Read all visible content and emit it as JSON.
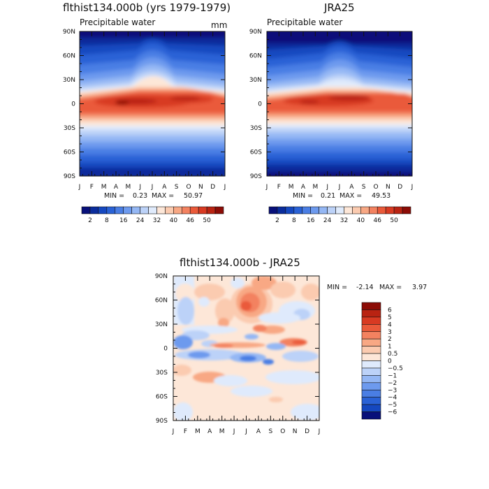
{
  "chart_data": [
    {
      "type": "heatmap",
      "title": "flthist134.000b (yrs 1979-1979)",
      "subtitle": "Precipitable water",
      "units": "mm",
      "x_ticks": [
        "J",
        "F",
        "M",
        "A",
        "M",
        "J",
        "J",
        "A",
        "S",
        "O",
        "N",
        "D",
        "J"
      ],
      "y_ticks": [
        "90N",
        "60N",
        "30N",
        "0",
        "30S",
        "60S",
        "90S"
      ],
      "lat_range": [
        -90,
        90
      ],
      "stats": {
        "min_label": "MIN =",
        "min": "0.23",
        "max_label": "MAX =",
        "max": "50.97"
      },
      "colorbar": {
        "orientation": "horizontal",
        "labels": [
          "2",
          "8",
          "16",
          "24",
          "32",
          "40",
          "46",
          "50"
        ],
        "levels": [
          2,
          4,
          6,
          8,
          12,
          16,
          20,
          24,
          28,
          32,
          36,
          40,
          44,
          46,
          48,
          50
        ],
        "colors": [
          "#08107a",
          "#0a2c9c",
          "#1548c0",
          "#2a62d6",
          "#4a7ee4",
          "#6d9aee",
          "#94b7f4",
          "#bcd2f8",
          "#e0ebfc",
          "#fde7d8",
          "#fbcbb0",
          "#f8a884",
          "#f38260",
          "#ea5a3a",
          "#d83a22",
          "#b92312",
          "#8c0c06"
        ]
      },
      "grid": false
    },
    {
      "type": "heatmap",
      "title": "JRA25",
      "subtitle": "Precipitable water",
      "x_ticks": [
        "J",
        "F",
        "M",
        "A",
        "M",
        "J",
        "J",
        "A",
        "S",
        "O",
        "N",
        "D",
        "J"
      ],
      "y_ticks": [
        "90N",
        "60N",
        "30N",
        "0",
        "30S",
        "60S",
        "90S"
      ],
      "lat_range": [
        -90,
        90
      ],
      "stats": {
        "min_label": "MIN =",
        "min": "0.21",
        "max_label": "MAX =",
        "max": "49.53"
      },
      "colorbar": {
        "orientation": "horizontal",
        "labels": [
          "2",
          "8",
          "16",
          "24",
          "32",
          "40",
          "46",
          "50"
        ]
      },
      "grid": false
    },
    {
      "type": "heatmap",
      "title": "flthist134.000b - JRA25",
      "x_ticks": [
        "J",
        "F",
        "M",
        "A",
        "M",
        "J",
        "J",
        "A",
        "S",
        "O",
        "N",
        "D",
        "J"
      ],
      "y_ticks": [
        "90N",
        "60N",
        "30N",
        "0",
        "30S",
        "60S",
        "90S"
      ],
      "lat_range": [
        -90,
        90
      ],
      "stats": {
        "min_label": "MIN =",
        "min": "-2.14",
        "max_label": "MAX =",
        "max": "3.97"
      },
      "colorbar": {
        "orientation": "vertical",
        "labels": [
          "6",
          "5",
          "4",
          "3",
          "2",
          "1",
          "0.5",
          "0",
          "-0.5",
          "-1",
          "-2",
          "-3",
          "-4",
          "-5",
          "-6"
        ],
        "colors": [
          "#8c0c06",
          "#b92312",
          "#d83a22",
          "#ea5a3a",
          "#f38260",
          "#f8a884",
          "#fbcbb0",
          "#fde7d8",
          "#dfeafc",
          "#bcd2f8",
          "#94b7f4",
          "#6d9aee",
          "#4a7ee4",
          "#2a62d6",
          "#1548c0",
          "#08107a"
        ]
      },
      "grid": false
    }
  ]
}
